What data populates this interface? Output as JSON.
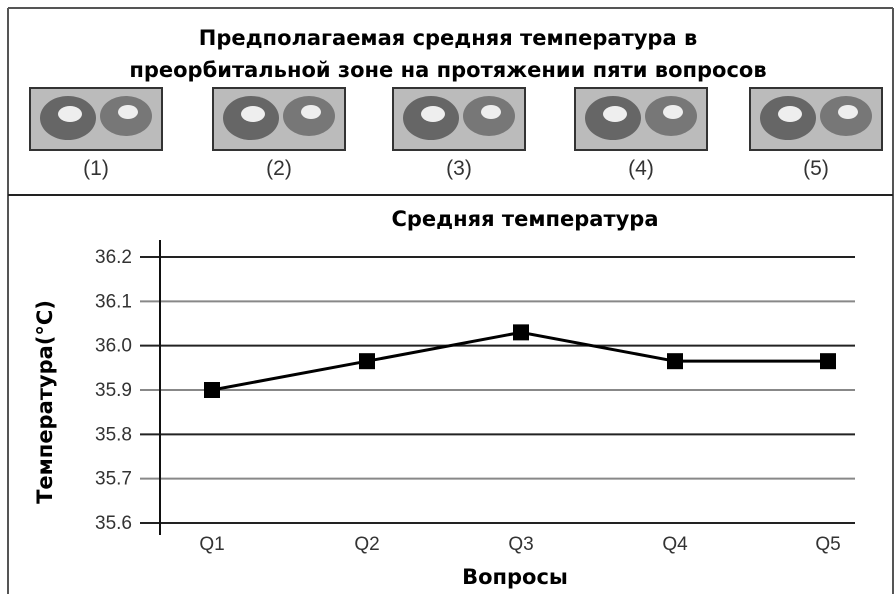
{
  "figure": {
    "title_lines": [
      "Предполагаемая средняя температура в",
      "преорбитальной зоне на протяжении пяти вопросов"
    ],
    "panels": [
      "(1)",
      "(2)",
      "(3)",
      "(4)",
      "(5)"
    ]
  },
  "chart_data": {
    "type": "line",
    "title": "Средняя температура",
    "x_label": "Вопросы",
    "y_label": "Температура(°C)",
    "categories": [
      "Q1",
      "Q2",
      "Q3",
      "Q4",
      "Q5"
    ],
    "series": [
      {
        "name": "Средняя температура",
        "color": "#000000",
        "values": [
          35.9,
          35.965,
          36.03,
          35.965,
          35.965
        ]
      }
    ],
    "ylim": [
      35.6,
      36.2
    ],
    "yticks": [
      35.6,
      35.7,
      35.8,
      35.9,
      {
        "value": 36,
        "label": "36.0"
      },
      36.1,
      36.2
    ],
    "grid": true
  }
}
